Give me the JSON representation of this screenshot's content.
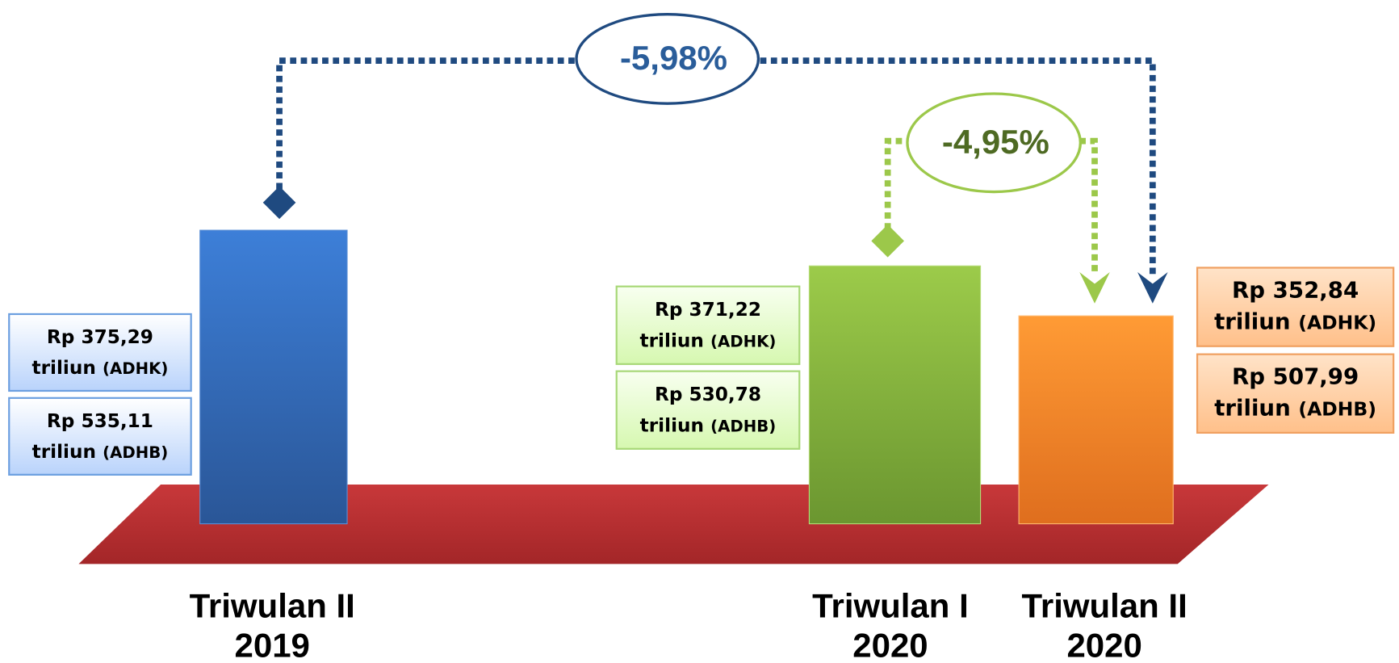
{
  "periods": [
    {
      "name": "Triwulan II",
      "year": "2019",
      "adhk": {
        "amount": "Rp 375,29",
        "unit": "triliun",
        "tag": "(ADHK)"
      },
      "adhb": {
        "amount": "Rp 535,11",
        "unit": "triliun",
        "tag": "(ADHB)"
      }
    },
    {
      "name": "Triwulan I",
      "year": "2020",
      "adhk": {
        "amount": "Rp 371,22",
        "unit": "triliun",
        "tag": "(ADHK)"
      },
      "adhb": {
        "amount": "Rp 530,78",
        "unit": "triliun",
        "tag": "(ADHB)"
      }
    },
    {
      "name": "Triwulan II",
      "year": "2020",
      "adhk": {
        "amount": "Rp 352,84",
        "unit": "triliun",
        "tag": "(ADHK)"
      },
      "adhb": {
        "amount": "Rp 507,99",
        "unit": "triliun",
        "tag": "(ADHB)"
      }
    }
  ],
  "changes": {
    "year_on_year": "-5,98%",
    "quarter_on_quarter": "-4,95%"
  }
}
